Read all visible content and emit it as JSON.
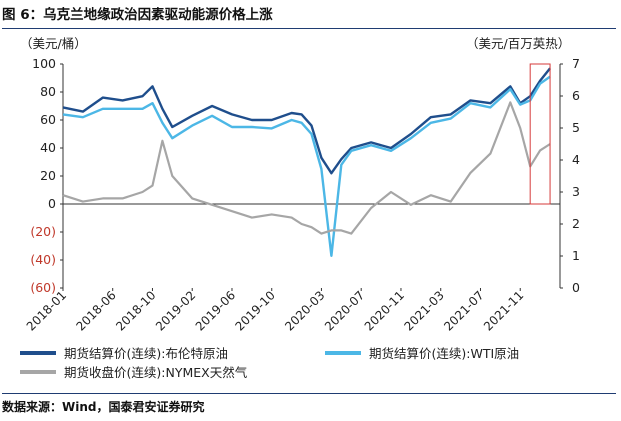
{
  "figure": {
    "title": "图 6：乌克兰地缘政治因素驱动能源价格上涨",
    "source": "数据来源：Wind，国泰君安证券研究"
  },
  "chart_data": {
    "type": "line",
    "left_axis": {
      "unit": "（美元/桶）",
      "ylim": [
        -60,
        100
      ],
      "ticks": [
        100,
        80,
        60,
        40,
        20,
        0,
        -20,
        -40,
        -60
      ],
      "tick_labels": [
        "100",
        "80",
        "60",
        "40",
        "20",
        "0",
        "(20)",
        "(40)",
        "(60)"
      ]
    },
    "right_axis": {
      "unit": "（美元/百万英热）",
      "ylim": [
        0,
        7
      ],
      "ticks": [
        7,
        6,
        5,
        4,
        3,
        2,
        1,
        0
      ],
      "tick_labels": [
        "7",
        "6",
        "5",
        "4",
        "3",
        "2",
        "1",
        "0"
      ]
    },
    "x_tick_labels": [
      "2018-01",
      "2018-06",
      "2018-10",
      "2019-02",
      "2019-06",
      "2019-10",
      "2020-03",
      "2020-07",
      "2020-11",
      "2021-03",
      "2021-07",
      "2021-11"
    ],
    "x": [
      "2018-01",
      "2018-03",
      "2018-05",
      "2018-07",
      "2018-09",
      "2018-10",
      "2018-11",
      "2018-12",
      "2019-02",
      "2019-04",
      "2019-06",
      "2019-08",
      "2019-10",
      "2019-12",
      "2020-01",
      "2020-02",
      "2020-03",
      "2020-04",
      "2020-05",
      "2020-06",
      "2020-08",
      "2020-10",
      "2020-12",
      "2021-02",
      "2021-04",
      "2021-06",
      "2021-08",
      "2021-10",
      "2021-11",
      "2021-12",
      "2022-01",
      "2022-02"
    ],
    "series": [
      {
        "name": "期货结算价(连续):布伦特原油",
        "axis": "left",
        "color": "#1f4e8c",
        "values": [
          69,
          66,
          76,
          74,
          77,
          84,
          68,
          55,
          63,
          70,
          64,
          60,
          60,
          65,
          64,
          56,
          33,
          22,
          32,
          40,
          44,
          40,
          50,
          62,
          64,
          74,
          72,
          84,
          72,
          77,
          88,
          97
        ]
      },
      {
        "name": "期货结算价(连续):WTI原油",
        "axis": "left",
        "color": "#4cb7e6",
        "values": [
          64,
          62,
          68,
          68,
          68,
          72,
          58,
          47,
          56,
          63,
          55,
          55,
          54,
          60,
          58,
          50,
          25,
          -37,
          28,
          38,
          42,
          38,
          47,
          58,
          61,
          72,
          69,
          82,
          71,
          74,
          86,
          91
        ]
      },
      {
        "name": "期货收盘价(连续):NYMEX天然气",
        "axis": "right",
        "color": "#a6a6a6",
        "values": [
          2.9,
          2.7,
          2.8,
          2.8,
          3.0,
          3.2,
          4.6,
          3.5,
          2.8,
          2.6,
          2.4,
          2.2,
          2.3,
          2.2,
          2.0,
          1.9,
          1.7,
          1.8,
          1.8,
          1.7,
          2.5,
          3.0,
          2.6,
          2.9,
          2.7,
          3.6,
          4.2,
          5.8,
          5.0,
          3.8,
          4.3,
          4.5
        ]
      }
    ],
    "highlight": {
      "from": "2021-12",
      "to": "2022-02"
    }
  }
}
